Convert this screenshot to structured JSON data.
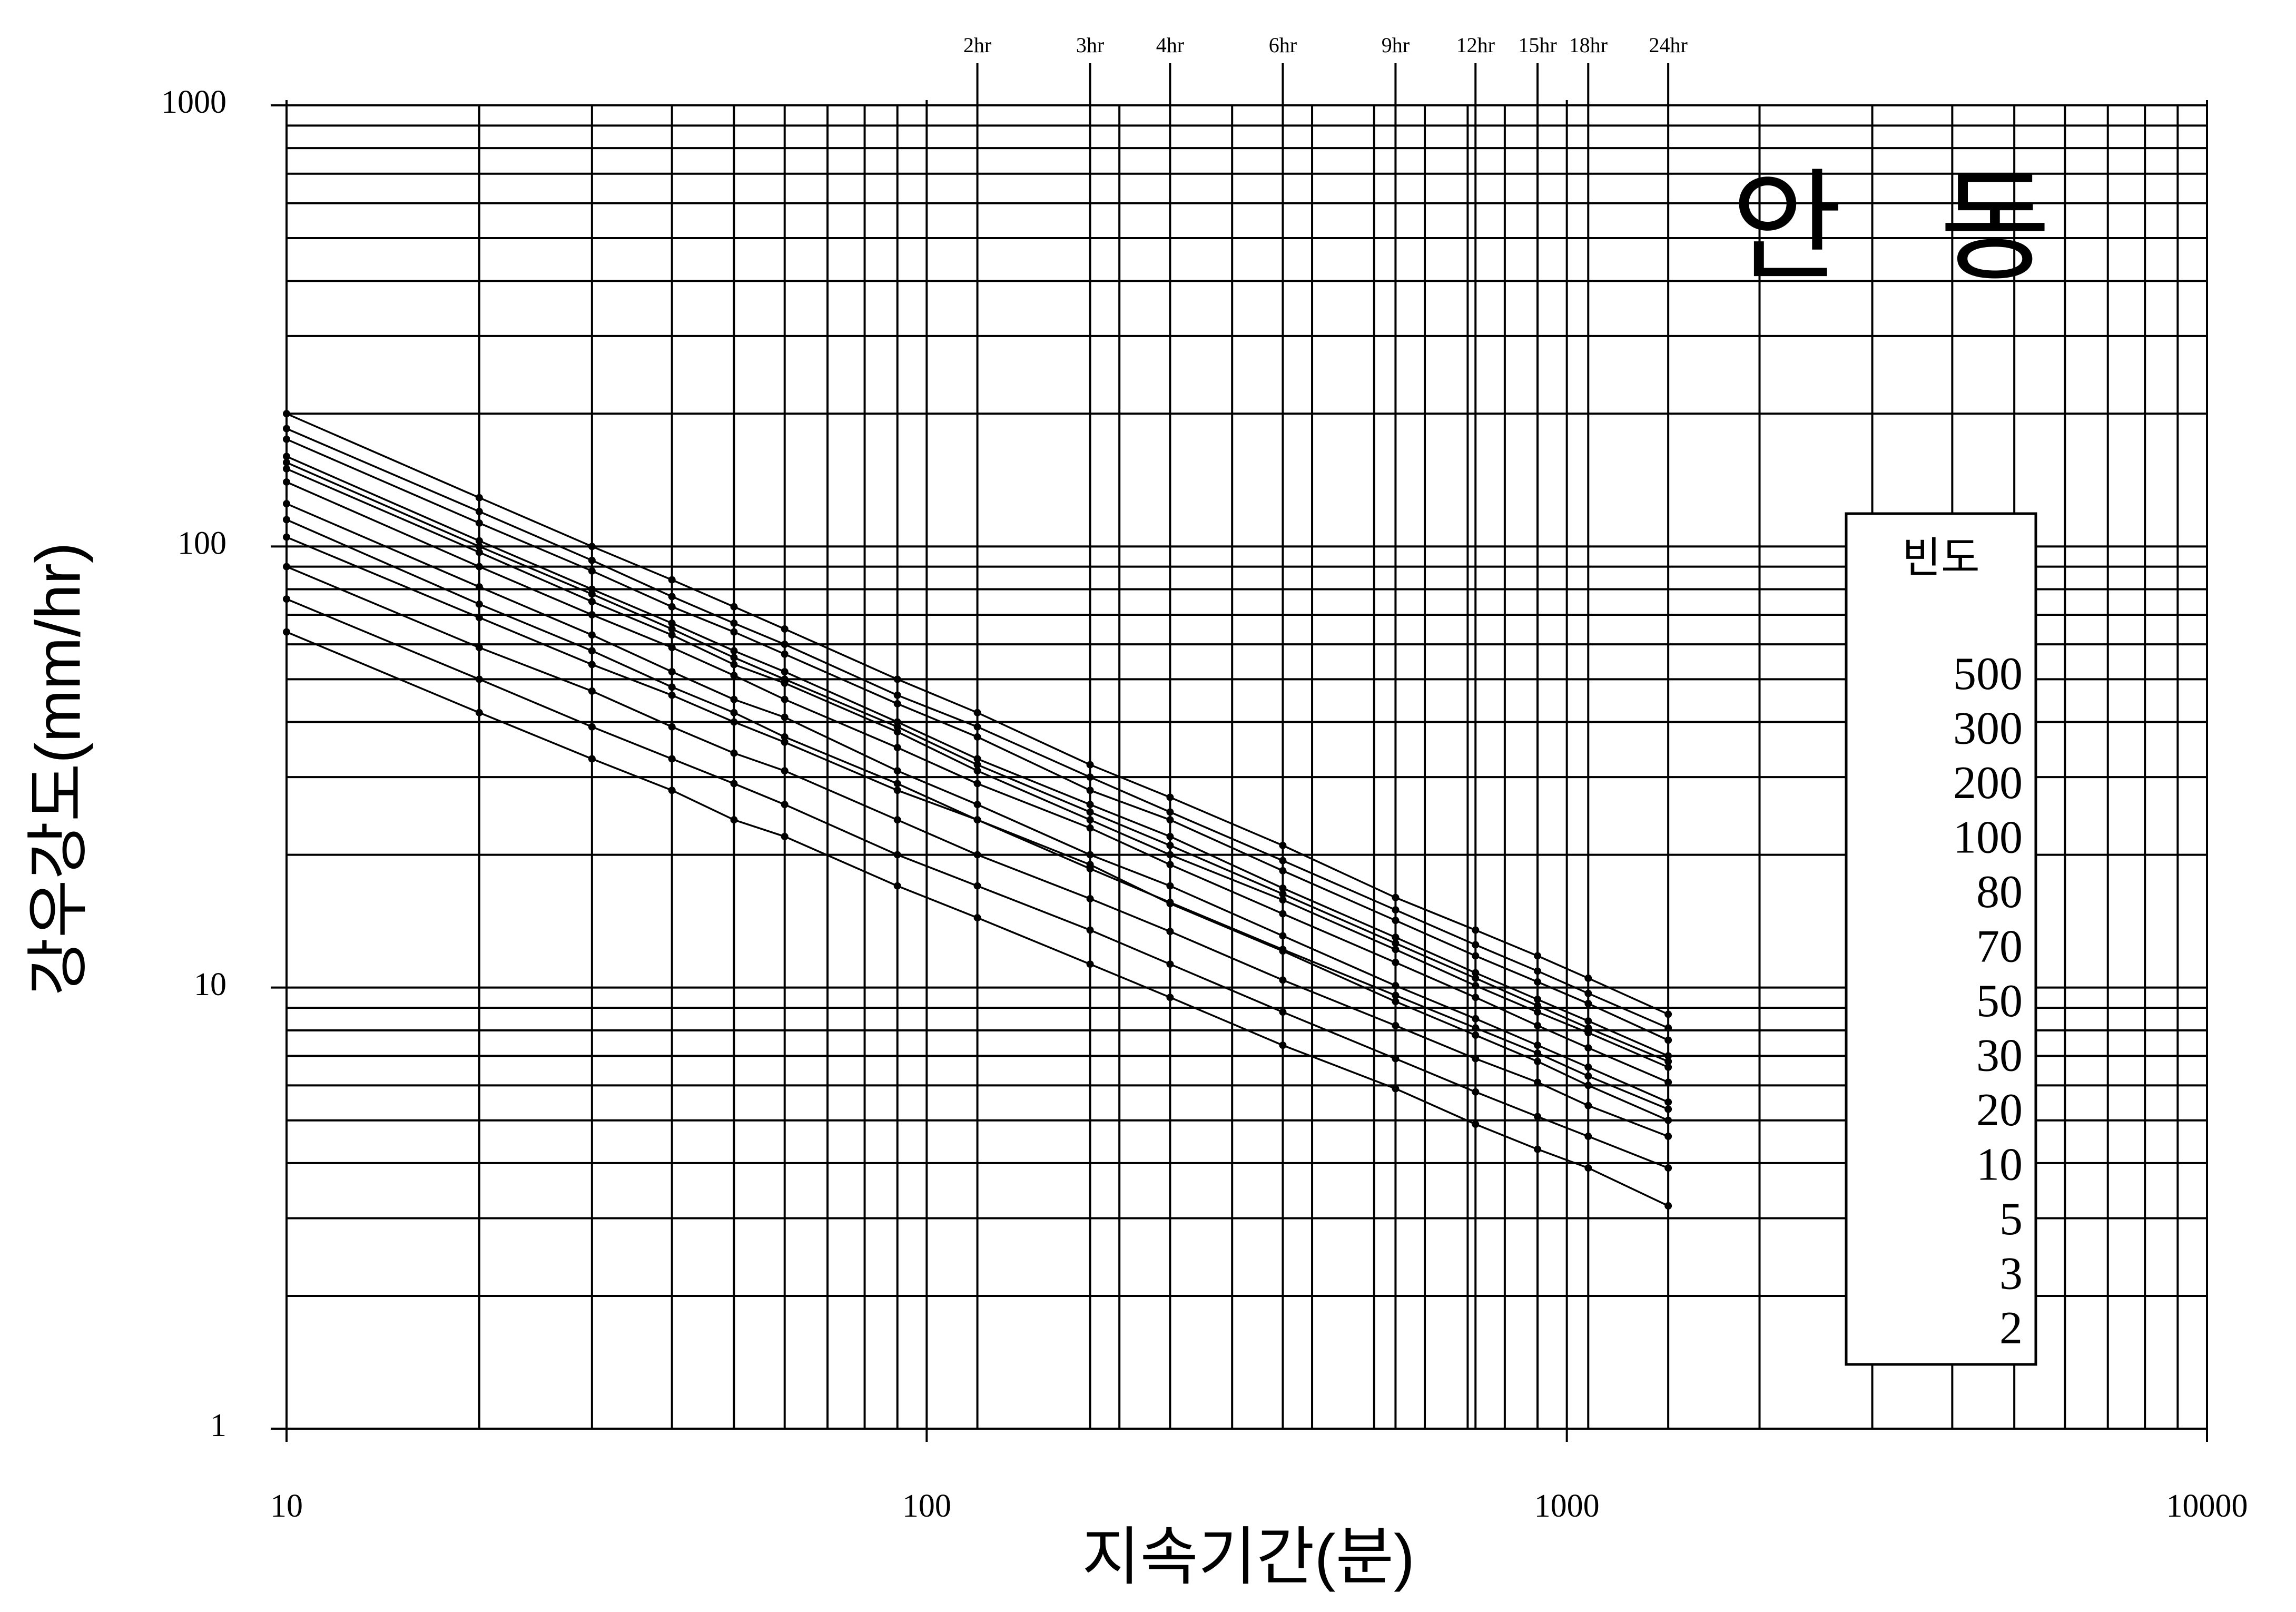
{
  "chart_data": {
    "type": "line",
    "title": "안 동",
    "xlabel": "지속기간(분)",
    "ylabel": "강우강도(mm/hr)",
    "log_x": true,
    "log_y": true,
    "grid": true,
    "color": "#000000",
    "xlim": [
      10,
      10000
    ],
    "ylim": [
      1,
      1000
    ],
    "xticks": [
      10,
      100,
      1000,
      10000
    ],
    "yticks": [
      1,
      10,
      100,
      1000
    ],
    "xminorticks": [
      20,
      30,
      40,
      50,
      60,
      70,
      80,
      90,
      200,
      300,
      400,
      500,
      600,
      700,
      800,
      900,
      2000,
      3000,
      4000,
      5000,
      6000,
      7000,
      8000,
      9000
    ],
    "yminorticks": [
      2,
      3,
      4,
      5,
      6,
      7,
      8,
      9,
      20,
      30,
      40,
      50,
      60,
      70,
      80,
      90,
      200,
      300,
      400,
      500,
      600,
      700,
      800,
      900
    ],
    "x2ticks": [
      {
        "value": 120,
        "label": "2hr"
      },
      {
        "value": 180,
        "label": "3hr"
      },
      {
        "value": 240,
        "label": "4hr"
      },
      {
        "value": 360,
        "label": "6hr"
      },
      {
        "value": 540,
        "label": "9hr"
      },
      {
        "value": 720,
        "label": "12hr"
      },
      {
        "value": 900,
        "label": "15hr"
      },
      {
        "value": 1080,
        "label": "18hr"
      },
      {
        "value": 1440,
        "label": "24hr"
      }
    ],
    "legend_title": "빈도",
    "x": [
      10,
      20,
      30,
      40,
      50,
      60,
      90,
      120,
      180,
      240,
      360,
      540,
      720,
      900,
      1080,
      1440
    ],
    "series": [
      {
        "name": "500",
        "values": [
          200,
          129,
          100,
          84,
          73,
          65,
          50,
          42,
          32,
          27,
          21,
          16,
          13.5,
          11.8,
          10.5,
          8.7
        ]
      },
      {
        "name": "300",
        "values": [
          185,
          120,
          93,
          77,
          67,
          60,
          46,
          39,
          30,
          25,
          19.4,
          15,
          12.5,
          10.9,
          9.7,
          8.1
        ]
      },
      {
        "name": "200",
        "values": [
          175,
          113,
          88,
          73,
          64,
          57,
          44,
          37,
          28,
          24,
          18.4,
          14.2,
          11.8,
          10.3,
          9.2,
          7.6
        ]
      },
      {
        "name": "100",
        "values": [
          160,
          103,
          80,
          67,
          58,
          52,
          40,
          33,
          26,
          22,
          16.8,
          13,
          10.8,
          9.4,
          8.4,
          7.0
        ]
      },
      {
        "name": "80",
        "values": [
          155,
          100,
          78,
          65,
          56,
          50,
          39,
          32,
          25,
          21,
          16.3,
          12.6,
          10.5,
          9.1,
          8.1,
          6.8
        ]
      },
      {
        "name": "70",
        "values": [
          150,
          97,
          75,
          63,
          54,
          49,
          38,
          31,
          24,
          20,
          15.8,
          12.2,
          10.1,
          8.8,
          7.9,
          6.6
        ]
      },
      {
        "name": "50",
        "values": [
          140,
          90,
          70,
          59,
          51,
          45,
          35,
          29,
          23,
          19,
          14.7,
          11.4,
          9.5,
          8.2,
          7.3,
          6.1
        ]
      },
      {
        "name": "30",
        "values": [
          125,
          81,
          63,
          52,
          45,
          41,
          31,
          26,
          20,
          17,
          13.1,
          10.1,
          8.5,
          7.4,
          6.6,
          5.5
        ]
      },
      {
        "name": "20",
        "values": [
          115,
          74,
          58,
          48,
          42,
          37,
          29,
          24,
          19,
          15.5,
          12.1,
          9.3,
          7.8,
          6.8,
          6.0,
          5.0
        ]
      },
      {
        "name": "10",
        "values": [
          105,
          69,
          54,
          46,
          40,
          36,
          28,
          24,
          18.6,
          15.6,
          12.2,
          9.6,
          8.1,
          7.1,
          6.3,
          5.3
        ]
      },
      {
        "name": "5",
        "values": [
          90,
          59,
          47,
          39,
          34,
          31,
          24,
          20,
          15.9,
          13.4,
          10.4,
          8.2,
          6.9,
          6.1,
          5.4,
          4.6
        ]
      },
      {
        "name": "3",
        "values": [
          76,
          50,
          39,
          33,
          29,
          26,
          20,
          17,
          13.5,
          11.3,
          8.8,
          6.9,
          5.8,
          5.1,
          4.6,
          3.9
        ]
      },
      {
        "name": "2",
        "values": [
          64,
          42,
          33,
          28,
          24,
          22,
          17,
          14.4,
          11.3,
          9.5,
          7.4,
          5.9,
          4.9,
          4.3,
          3.9,
          3.2
        ]
      }
    ]
  }
}
